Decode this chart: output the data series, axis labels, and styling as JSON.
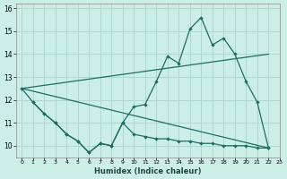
{
  "xlabel": "Humidex (Indice chaleur)",
  "background_color": "#cceee8",
  "grid_color": "#b0d8d0",
  "line_color": "#1a6e62",
  "xlim": [
    -0.5,
    23
  ],
  "ylim": [
    9.5,
    16.2
  ],
  "yticks": [
    10,
    11,
    12,
    13,
    14,
    15,
    16
  ],
  "xticks": [
    0,
    1,
    2,
    3,
    4,
    5,
    6,
    7,
    8,
    9,
    10,
    11,
    12,
    13,
    14,
    15,
    16,
    17,
    18,
    19,
    20,
    21,
    22,
    23
  ],
  "upper_jagged_x": [
    0,
    1,
    2,
    3,
    4,
    5,
    6,
    7,
    8,
    9,
    10,
    11,
    12,
    13,
    14,
    15,
    16,
    17,
    18,
    19,
    20,
    21,
    22
  ],
  "upper_jagged_y": [
    12.5,
    11.9,
    11.4,
    11.0,
    10.5,
    10.2,
    9.7,
    10.1,
    10.0,
    11.0,
    11.7,
    11.8,
    12.8,
    13.9,
    13.6,
    15.1,
    15.6,
    14.4,
    14.7,
    14.0,
    12.8,
    11.9,
    9.9
  ],
  "upper_trend_x": [
    0,
    22
  ],
  "upper_trend_y": [
    12.5,
    14.0
  ],
  "lower_trend_x": [
    0,
    22
  ],
  "lower_trend_y": [
    12.5,
    9.9
  ],
  "lower_jagged_x": [
    1,
    2,
    3,
    4,
    5,
    6,
    7,
    8,
    9,
    10,
    11,
    12,
    13,
    14,
    15,
    16,
    17,
    18,
    19,
    20,
    21,
    22
  ],
  "lower_jagged_y": [
    11.9,
    11.4,
    11.0,
    10.5,
    10.2,
    9.7,
    10.1,
    10.0,
    11.0,
    10.5,
    10.4,
    10.3,
    10.3,
    10.2,
    10.2,
    10.1,
    10.1,
    10.0,
    10.0,
    10.0,
    9.9,
    9.9
  ]
}
